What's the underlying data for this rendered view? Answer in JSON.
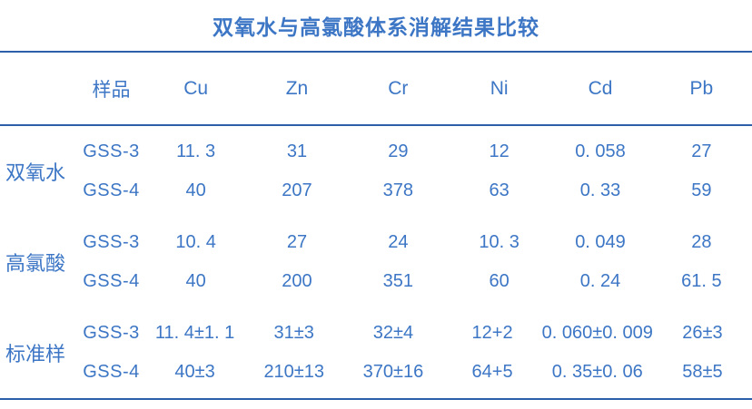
{
  "title": "双氧水与高氯酸体系消解结果比较",
  "colors": {
    "text_blue": "#3c76c5",
    "rule_blue": "#2d5fa9",
    "background": "#ffffff"
  },
  "table": {
    "columns": {
      "sample": "样品",
      "cu": "Cu",
      "zn": "Zn",
      "cr": "Cr",
      "ni": "Ni",
      "cd": "Cd",
      "pb": "Pb"
    },
    "groups": [
      {
        "label": "双氧水",
        "rows": [
          {
            "sample": "GSS-3",
            "values": {
              "cu": "11. 3",
              "zn": "31",
              "cr": "29",
              "ni": "12",
              "cd": "0. 058",
              "pb": "27"
            }
          },
          {
            "sample": "GSS-4",
            "values": {
              "cu": "40",
              "zn": "207",
              "cr": "378",
              "ni": "63",
              "cd": "0. 33",
              "pb": "59"
            }
          }
        ]
      },
      {
        "label": "高氯酸",
        "rows": [
          {
            "sample": "GSS-3",
            "values": {
              "cu": "10. 4",
              "zn": "27",
              "cr": "24",
              "ni": "10. 3",
              "cd": "0. 049",
              "pb": "28"
            }
          },
          {
            "sample": "GSS-4",
            "values": {
              "cu": "40",
              "zn": "200",
              "cr": "351",
              "ni": "60",
              "cd": "0. 24",
              "pb": "61. 5"
            }
          }
        ]
      },
      {
        "label": "标准样",
        "rows": [
          {
            "sample": "GSS-3",
            "values": {
              "cu": "11. 4±1. 1",
              "zn": "31±3",
              "cr": "32±4",
              "ni": "12+2",
              "cd": "0. 060±0. 009",
              "pb": "26±3"
            }
          },
          {
            "sample": "GSS-4",
            "values": {
              "cu": "40±3",
              "zn": "210±13",
              "cr": "370±16",
              "ni": "64+5",
              "cd": "0. 35±0. 06",
              "pb": "58±5"
            }
          }
        ]
      }
    ]
  }
}
